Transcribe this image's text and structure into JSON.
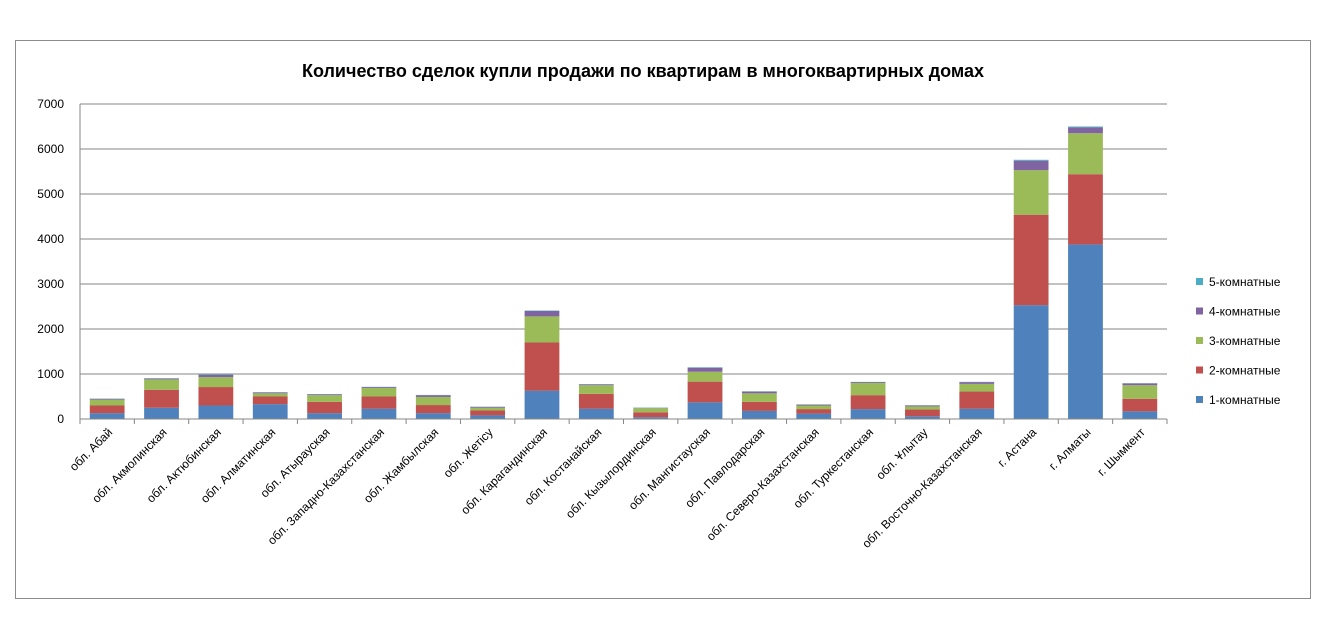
{
  "chart_data": {
    "type": "bar",
    "stacked": true,
    "title": "Количество сделок купли продажи по квартирам в многоквартирных домах",
    "xlabel": "",
    "ylabel": "",
    "ylim": [
      0,
      7000
    ],
    "yticks": [
      "0",
      "1000",
      "2000",
      "3000",
      "4000",
      "5000",
      "6000",
      "7000"
    ],
    "grid": true,
    "legend_position": "right",
    "categories": [
      "обл. Абай",
      "обл. Акмолинская",
      "обл. Актюбинская",
      "обл. Алматинская",
      "обл. Атырауская",
      "обл. Западно-Казахстанская",
      "обл. Жамбылская",
      "обл. Жетісу",
      "обл. Карагандинская",
      "обл. Костанайская",
      "обл. Кызылординская",
      "обл. Мангистауская",
      "обл. Павлодарская",
      "обл. Северо-Казахстанская",
      "обл. Туркестанская",
      "обл. Ұлытау",
      "обл. Восточно-Казахстанская",
      "г. Астана",
      "г. Алматы",
      "г. Шымкент"
    ],
    "series": [
      {
        "name": "1-комнатные",
        "color": "#4F81BD",
        "values": [
          130,
          250,
          300,
          330,
          130,
          230,
          130,
          80,
          630,
          230,
          40,
          370,
          180,
          120,
          220,
          60,
          230,
          2530,
          3880,
          170
        ]
      },
      {
        "name": "2-комнатные",
        "color": "#C0504D",
        "values": [
          170,
          400,
          410,
          170,
          250,
          270,
          180,
          110,
          1070,
          330,
          110,
          460,
          200,
          100,
          310,
          150,
          380,
          2010,
          1560,
          280
        ]
      },
      {
        "name": "3-комнатные",
        "color": "#9BBB59",
        "values": [
          130,
          230,
          220,
          70,
          150,
          190,
          180,
          60,
          580,
          190,
          90,
          220,
          190,
          80,
          270,
          70,
          170,
          990,
          910,
          300
        ]
      },
      {
        "name": "4-комнатные",
        "color": "#8064A2",
        "values": [
          20,
          20,
          50,
          20,
          20,
          20,
          40,
          20,
          120,
          20,
          10,
          90,
          40,
          20,
          20,
          20,
          40,
          210,
          130,
          40
        ]
      },
      {
        "name": "5-комнатные",
        "color": "#4BACC6",
        "values": [
          5,
          5,
          10,
          5,
          5,
          5,
          5,
          5,
          10,
          5,
          5,
          10,
          5,
          5,
          5,
          5,
          5,
          20,
          20,
          5
        ]
      }
    ]
  }
}
